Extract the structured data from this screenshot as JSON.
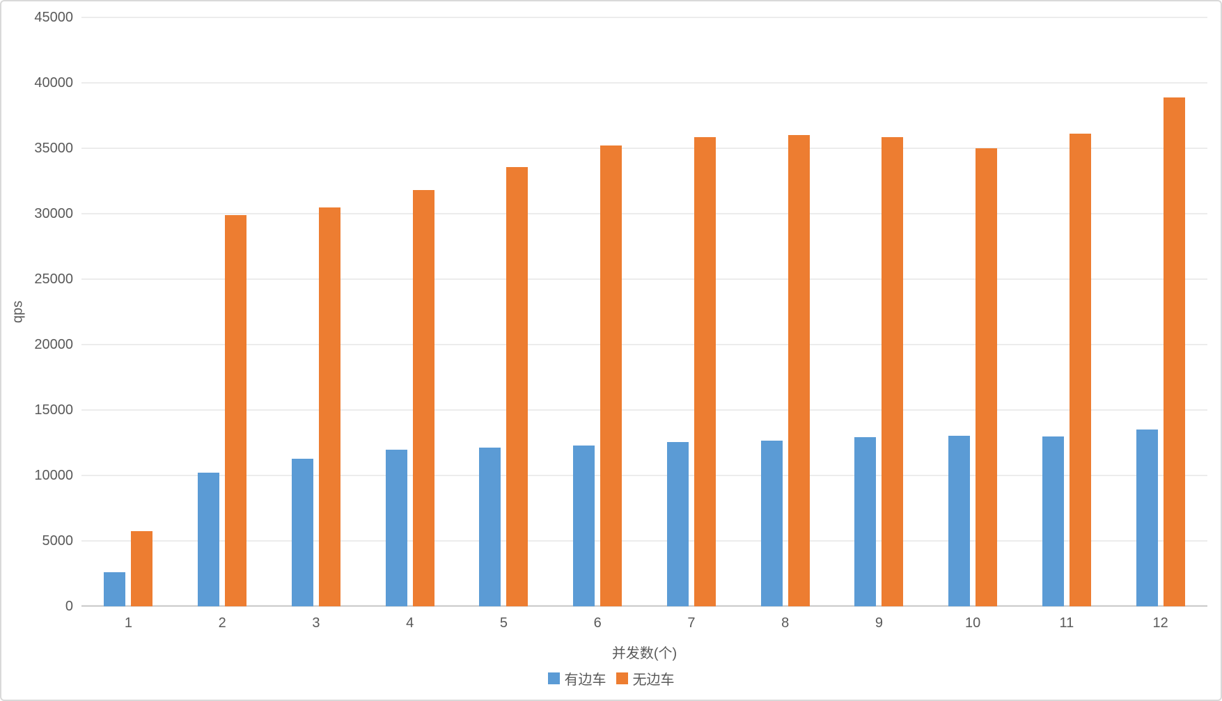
{
  "chart_data": {
    "type": "bar",
    "title": "",
    "xlabel": "并发数(个)",
    "ylabel": "qps",
    "categories": [
      "1",
      "2",
      "3",
      "4",
      "5",
      "6",
      "7",
      "8",
      "9",
      "10",
      "11",
      "12"
    ],
    "series": [
      {
        "name": "有边车",
        "color": "#5B9BD5",
        "values": [
          2600,
          10200,
          11300,
          11950,
          12150,
          12300,
          12550,
          12650,
          12950,
          13050,
          13000,
          13500
        ]
      },
      {
        "name": "无边车",
        "color": "#ED7D31",
        "values": [
          5750,
          29900,
          30500,
          31800,
          33550,
          35200,
          35850,
          36000,
          35850,
          35000,
          36100,
          38900
        ]
      }
    ],
    "ylim": [
      0,
      45000
    ],
    "ytick_step": 5000,
    "grid": true,
    "legend_position": "bottom"
  },
  "colors": {
    "gridline": "#d9d9d9",
    "axis_line": "#c6c6c6",
    "tick_text": "#595959",
    "background": "#ffffff",
    "border": "#d9d9d9"
  }
}
